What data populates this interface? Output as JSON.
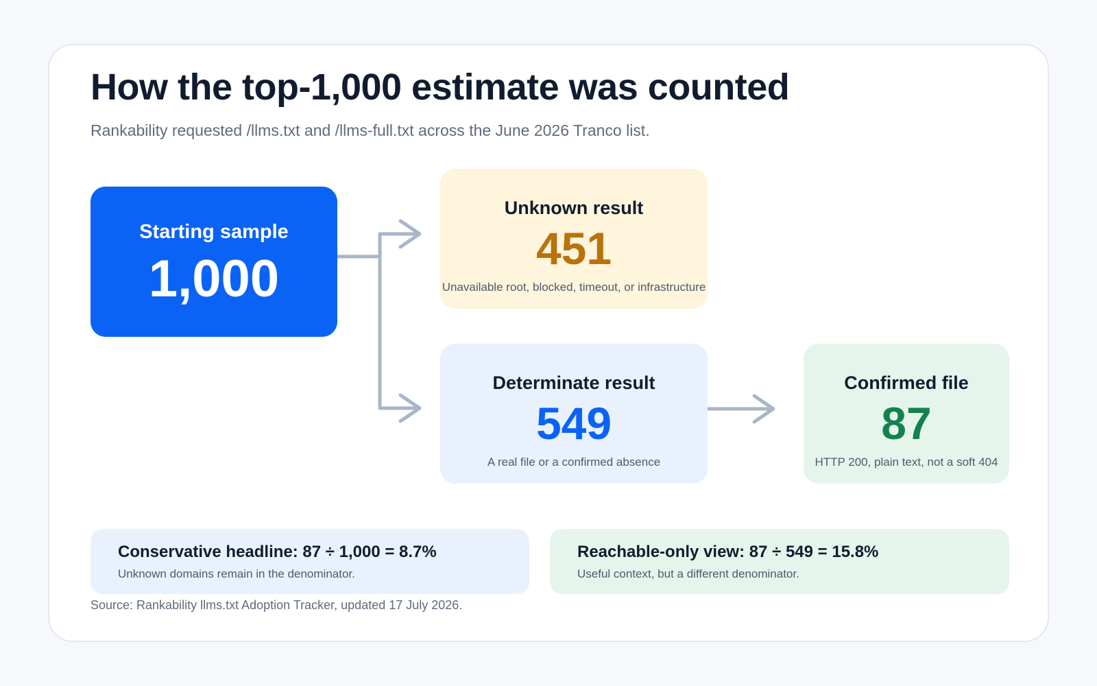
{
  "header": {
    "title": "How the top-1,000 estimate was counted",
    "subtitle": "Rankability requested /llms.txt and /llms-full.txt across the June 2026 Tranco list."
  },
  "flow": {
    "start": {
      "label": "Starting sample",
      "value": "1,000"
    },
    "unknown": {
      "label": "Unknown result",
      "value": "451",
      "description": "Unavailable root, blocked, timeout, or infrastructure"
    },
    "determinate": {
      "label": "Determinate result",
      "value": "549",
      "description": "A real file or a confirmed absence"
    },
    "confirmed": {
      "label": "Confirmed file",
      "value": "87",
      "description": "HTTP 200, plain text, not a soft 404"
    }
  },
  "notes": {
    "conservative": {
      "headline": "Conservative headline: 87 ÷ 1,000 = 8.7%",
      "detail": "Unknown domains remain in the denominator."
    },
    "reachable": {
      "headline": "Reachable-only view: 87 ÷ 549 = 15.8%",
      "detail": "Useful context, but a different denominator."
    }
  },
  "source": "Source: Rankability llms.txt Adoption Tracker, updated 17 July 2026.",
  "colors": {
    "start": "#0b63f6",
    "unknown_value": "#b8730a",
    "determinate_value": "#0b63f6",
    "confirmed_value": "#13824f",
    "connector": "#a9b6c8"
  }
}
